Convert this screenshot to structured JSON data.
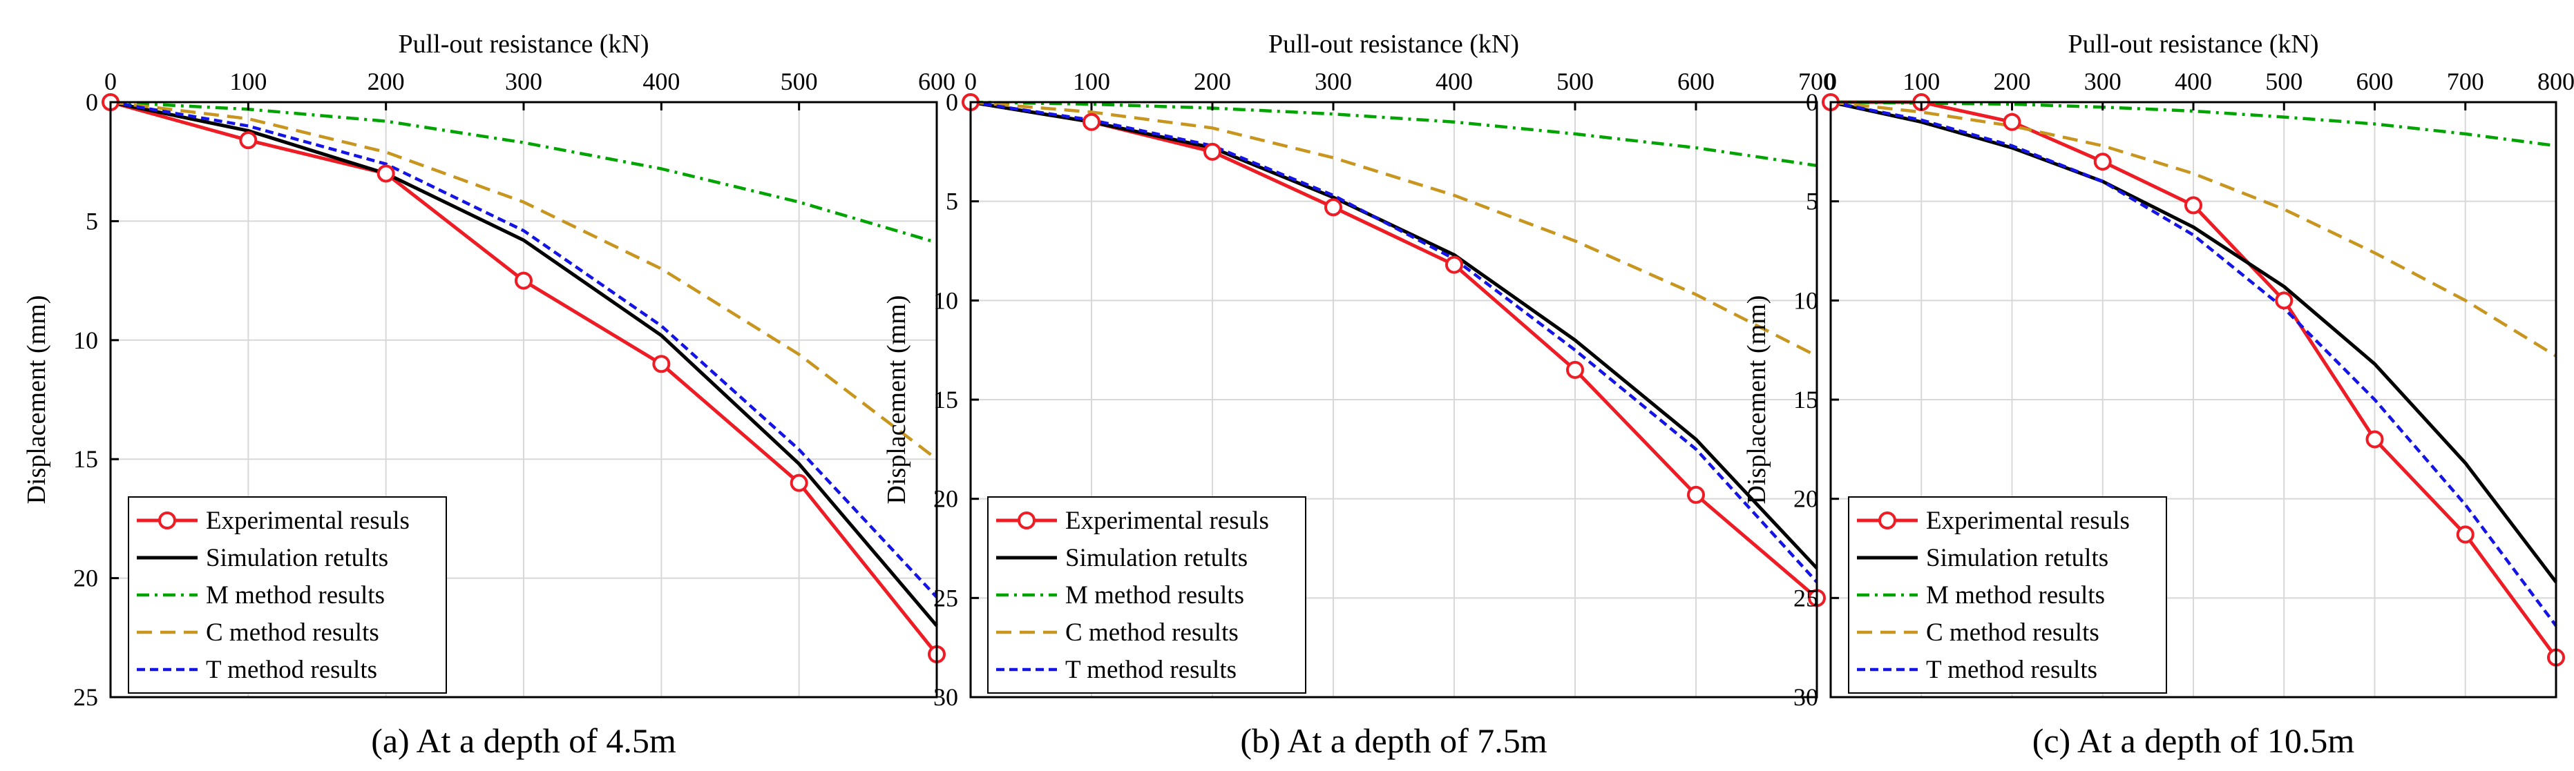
{
  "figure": {
    "captions": [
      "(a) At a depth of 4.5m",
      "(b) At a depth of 7.5m",
      "(c) At a depth of 10.5m"
    ]
  },
  "colors": {
    "experimental": "#ee1c24",
    "simulation": "#000000",
    "m_method": "#00a400",
    "c_method": "#c8961e",
    "t_method": "#1414e6",
    "grid": "#d8d8d8"
  },
  "chart_data": [
    {
      "type": "line",
      "title": "",
      "xlabel": "Pull-out resistance (kN)",
      "ylabel": "Displacement (mm)",
      "xlim": [
        0,
        600
      ],
      "ylim": [
        0,
        25
      ],
      "y_inverted": true,
      "x_axis_position": "top",
      "xticks": [
        0,
        100,
        200,
        300,
        400,
        500,
        600
      ],
      "yticks": [
        0,
        5,
        10,
        15,
        20,
        25
      ],
      "grid": true,
      "legend_position": "bottom-left",
      "series": [
        {
          "name": "Experimental resuls",
          "style": "line-circle",
          "x": [
            0,
            100,
            200,
            300,
            400,
            500,
            600
          ],
          "y": [
            0,
            1.6,
            3.0,
            7.5,
            11.0,
            16.0,
            23.2
          ]
        },
        {
          "name": "Simulation retults",
          "style": "solid",
          "x": [
            0,
            100,
            200,
            300,
            400,
            500,
            600
          ],
          "y": [
            0,
            1.2,
            3.0,
            5.8,
            9.8,
            15.2,
            22.0
          ]
        },
        {
          "name": "M method results",
          "style": "dashdot",
          "x": [
            0,
            100,
            200,
            300,
            400,
            500,
            600
          ],
          "y": [
            0,
            0.3,
            0.8,
            1.7,
            2.8,
            4.2,
            5.9
          ]
        },
        {
          "name": "C method results",
          "style": "dashed",
          "x": [
            0,
            100,
            200,
            300,
            400,
            500,
            600
          ],
          "y": [
            0,
            0.7,
            2.1,
            4.2,
            7.0,
            10.6,
            15.0
          ]
        },
        {
          "name": "T method results",
          "style": "dotted",
          "x": [
            0,
            100,
            200,
            300,
            400,
            500,
            600
          ],
          "y": [
            0,
            1.0,
            2.6,
            5.4,
            9.4,
            14.6,
            20.8
          ]
        }
      ]
    },
    {
      "type": "line",
      "title": "",
      "xlabel": "Pull-out resistance (kN)",
      "ylabel": "Displacement (mm)",
      "xlim": [
        0,
        700
      ],
      "ylim": [
        0,
        30
      ],
      "y_inverted": true,
      "x_axis_position": "top",
      "xticks": [
        0,
        100,
        200,
        300,
        400,
        500,
        600,
        700
      ],
      "yticks": [
        0,
        5,
        10,
        15,
        20,
        25,
        30
      ],
      "grid": true,
      "legend_position": "bottom-left",
      "series": [
        {
          "name": "Experimental resuls",
          "style": "line-circle",
          "x": [
            0,
            100,
            200,
            300,
            400,
            500,
            600,
            700
          ],
          "y": [
            0,
            1.0,
            2.5,
            5.3,
            8.2,
            13.5,
            19.8,
            25.0
          ]
        },
        {
          "name": "Simulation retults",
          "style": "solid",
          "x": [
            0,
            100,
            200,
            300,
            400,
            500,
            600,
            700
          ],
          "y": [
            0,
            1.0,
            2.3,
            4.8,
            7.7,
            12.0,
            17.0,
            23.5
          ]
        },
        {
          "name": "M method results",
          "style": "dashdot",
          "x": [
            0,
            100,
            200,
            300,
            400,
            500,
            600,
            700
          ],
          "y": [
            0,
            0.1,
            0.3,
            0.6,
            1.0,
            1.6,
            2.3,
            3.2
          ]
        },
        {
          "name": "C method results",
          "style": "dashed",
          "x": [
            0,
            100,
            200,
            300,
            400,
            500,
            600,
            700
          ],
          "y": [
            0,
            0.5,
            1.3,
            2.8,
            4.7,
            7.0,
            9.7,
            12.8
          ]
        },
        {
          "name": "T method results",
          "style": "dotted",
          "x": [
            0,
            100,
            200,
            300,
            400,
            500,
            600,
            700
          ],
          "y": [
            0,
            0.9,
            2.2,
            4.7,
            7.9,
            12.5,
            17.5,
            24.2
          ]
        }
      ]
    },
    {
      "type": "line",
      "title": "",
      "xlabel": "Pull-out resistance (kN)",
      "ylabel": "Displacement (mm)",
      "xlim": [
        0,
        800
      ],
      "ylim": [
        0,
        30
      ],
      "y_inverted": true,
      "x_axis_position": "top",
      "xticks": [
        0,
        100,
        200,
        300,
        400,
        500,
        600,
        700,
        800
      ],
      "yticks": [
        0,
        5,
        10,
        15,
        20,
        25,
        30
      ],
      "grid": true,
      "legend_position": "bottom-left",
      "series": [
        {
          "name": "Experimental resuls",
          "style": "line-circle",
          "x": [
            0,
            100,
            200,
            300,
            400,
            500,
            600,
            700,
            800
          ],
          "y": [
            0,
            0,
            1.0,
            3.0,
            5.2,
            10.0,
            17.0,
            21.8,
            28.0
          ]
        },
        {
          "name": "Simulation retults",
          "style": "solid",
          "x": [
            0,
            100,
            200,
            300,
            400,
            500,
            600,
            700,
            800
          ],
          "y": [
            0,
            1.0,
            2.3,
            4.0,
            6.3,
            9.3,
            13.2,
            18.2,
            24.2
          ]
        },
        {
          "name": "M method results",
          "style": "dashdot",
          "x": [
            0,
            100,
            200,
            300,
            400,
            500,
            600,
            700,
            800
          ],
          "y": [
            0,
            0.05,
            0.1,
            0.25,
            0.45,
            0.75,
            1.1,
            1.6,
            2.2
          ]
        },
        {
          "name": "C method results",
          "style": "dashed",
          "x": [
            0,
            100,
            200,
            300,
            400,
            500,
            600,
            700,
            800
          ],
          "y": [
            0,
            0.5,
            1.2,
            2.2,
            3.6,
            5.4,
            7.6,
            10.0,
            12.8
          ]
        },
        {
          "name": "T method results",
          "style": "dotted",
          "x": [
            0,
            100,
            200,
            300,
            400,
            500,
            600,
            700,
            800
          ],
          "y": [
            0,
            0.9,
            2.2,
            4.0,
            6.7,
            10.4,
            15.0,
            20.3,
            26.4
          ]
        }
      ]
    }
  ]
}
